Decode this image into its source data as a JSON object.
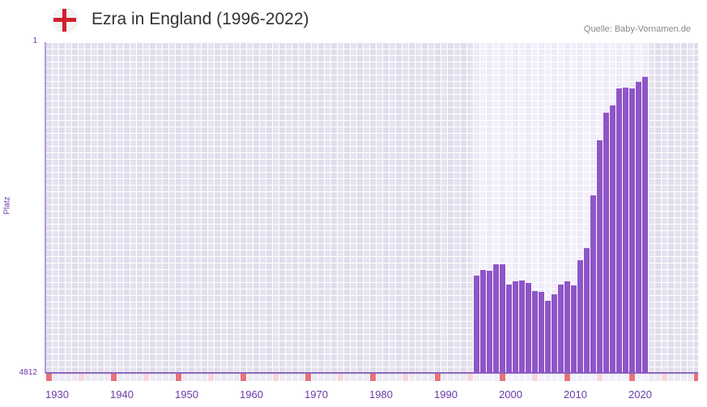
{
  "header": {
    "title": "Ezra in England (1996-2022)",
    "source": "Quelle: Baby-Vornamen.de",
    "flag_icon": "england-flag-icon"
  },
  "chart_data": {
    "type": "bar",
    "title": "Ezra in England (1996-2022)",
    "ylabel": "Platz",
    "ylim": [
      1,
      4812
    ],
    "y_ticks": [
      "1",
      "4812"
    ],
    "y_inverted": true,
    "x_range": [
      1930,
      2030
    ],
    "x_ticks": [
      "1930",
      "1940",
      "1950",
      "1960",
      "1970",
      "1980",
      "1990",
      "2000",
      "2010",
      "2020"
    ],
    "years": [
      1996,
      1997,
      1998,
      1999,
      2000,
      2001,
      2002,
      2003,
      2004,
      2005,
      2006,
      2007,
      2008,
      2009,
      2010,
      2011,
      2012,
      2013,
      2014,
      2015,
      2016,
      2017,
      2018,
      2019,
      2020,
      2021,
      2022
    ],
    "ranks": [
      2398,
      2283,
      2299,
      2171,
      2171,
      2585,
      2516,
      2499,
      2550,
      2725,
      2743,
      2942,
      2797,
      2585,
      2516,
      2602,
      2092,
      1865,
      1033,
      424,
      220,
      177,
      95,
      92,
      95,
      70,
      54
    ],
    "colors": {
      "bar": "#8e55c8",
      "bg_dark": "#e4e0ee",
      "bg_light": "#f1edfa",
      "axis": "#6b3aa8",
      "mark10": "#e8717a",
      "mark5": "#f5d6dd"
    }
  }
}
